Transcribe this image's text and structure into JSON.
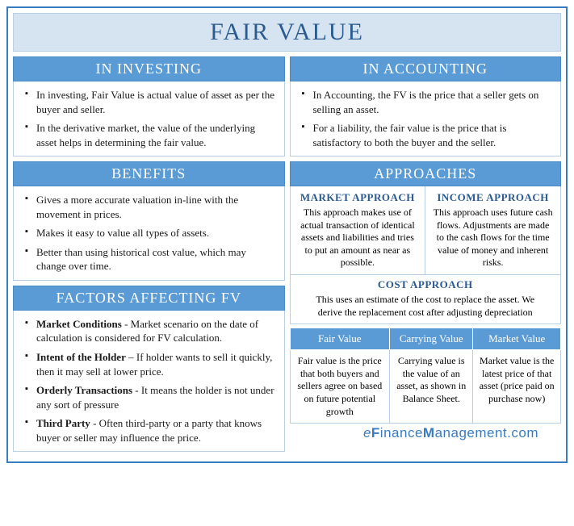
{
  "title": "FAIR VALUE",
  "investing": {
    "header": "IN INVESTING",
    "bullets": [
      "In investing, Fair Value is actual value of asset as per the buyer and seller.",
      "In the derivative market, the value of the underlying asset helps in determining the fair value."
    ]
  },
  "accounting": {
    "header": "IN ACCOUNTING",
    "bullets": [
      "In Accounting, the FV is the price that a seller gets on selling an asset.",
      "For a liability, the fair value is the price that is satisfactory to both the buyer and the seller."
    ]
  },
  "benefits": {
    "header": "BENEFITS",
    "bullets": [
      "Gives a more accurate valuation in-line with the movement in prices.",
      "Makes it easy to value all types of assets.",
      "Better than using historical cost value, which may change over time."
    ]
  },
  "factors": {
    "header": "FACTORS AFFECTING FV",
    "items": [
      {
        "term": "Market Conditions",
        "sep": " - ",
        "desc": "Market scenario on the date of calculation is considered for FV calculation."
      },
      {
        "term": "Intent of the Holder",
        "sep": " – ",
        "desc": "If holder wants to sell it quickly, then it may sell at lower price."
      },
      {
        "term": "Orderly Transactions",
        "sep": " - ",
        "desc": "It means the holder is not under any sort of pressure"
      },
      {
        "term": "Third Party",
        "sep": " - ",
        "desc": "Often third-party or a party that knows buyer or seller may influence the price."
      }
    ]
  },
  "approaches": {
    "header": "APPROACHES",
    "market": {
      "title": "MARKET APPROACH",
      "desc": "This approach makes use of actual transaction of identical assets and liabilities and tries to put an amount as near as possible."
    },
    "income": {
      "title": "INCOME APPROACH",
      "desc": "This approach uses future cash flows. Adjustments are made to the cash flows for the time value of money and inherent risks."
    },
    "cost": {
      "title": "COST APPROACH",
      "desc": "This uses an estimate of the cost to replace the asset. We derive the replacement cost after adjusting depreciation"
    }
  },
  "value_table": {
    "headers": [
      "Fair Value",
      "Carrying Value",
      "Market Value"
    ],
    "row": [
      "Fair value is the price that both buyers and sellers agree on based on future potential growth",
      "Carrying value is the value of an asset, as shown in Balance Sheet.",
      "Market value is the latest price of that asset (price paid on purchase now)"
    ]
  },
  "watermark": {
    "e": "e",
    "f": "F",
    "inance": "inance",
    "m": "M",
    "anagement": "anagement",
    "dotcom": ".com"
  },
  "colors": {
    "header_bg": "#5a9bd5",
    "title_bg": "#d6e4f2",
    "border": "#b8cfe5",
    "accent_text": "#2a5a8f",
    "container_border": "#3b7bbf"
  }
}
